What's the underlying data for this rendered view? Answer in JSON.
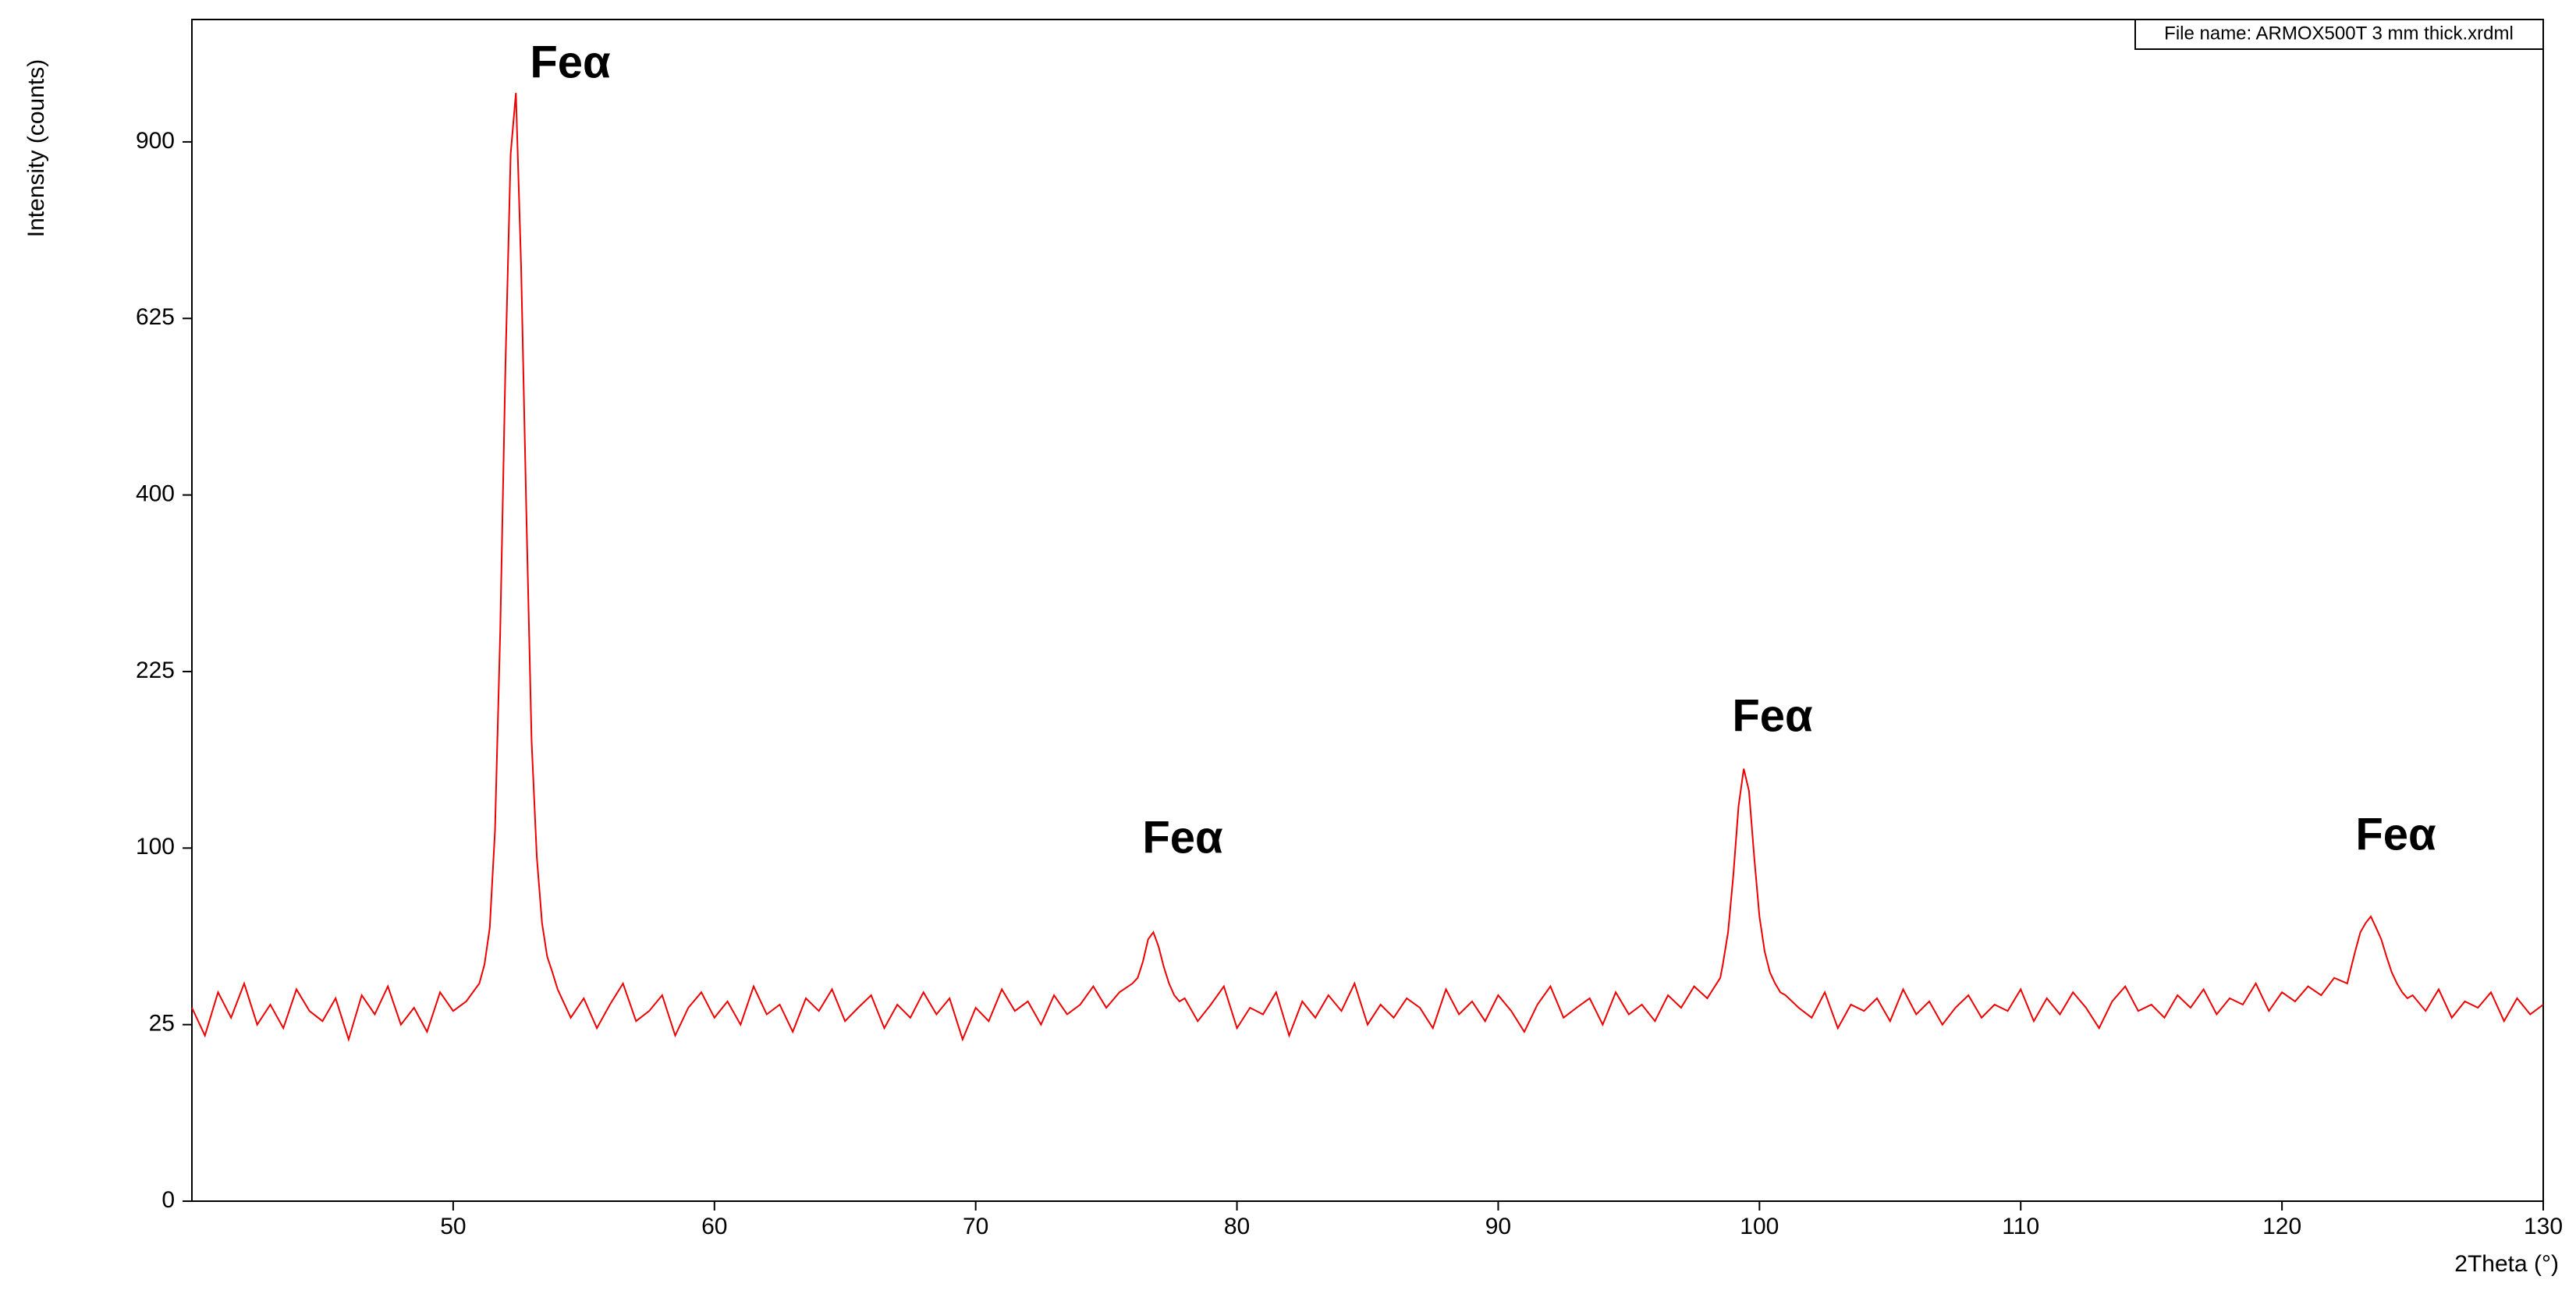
{
  "chart_data": {
    "type": "line",
    "file_note": "File name: ARMOX500T 3 mm thick.xrdml",
    "xlabel": "2Theta (°)",
    "ylabel": "Intensity (counts)",
    "annotations": [
      "Feα",
      "Feα",
      "Feα",
      "Feα"
    ],
    "yscale": "sqrt",
    "xlim": [
      40,
      130
    ],
    "xticks": [
      50,
      60,
      70,
      80,
      90,
      100,
      110,
      120,
      130
    ],
    "ylim": [
      0,
      1120
    ],
    "yticks": [
      0,
      25,
      100,
      225,
      400,
      625,
      900
    ],
    "x": [
      40,
      40.5,
      41,
      41.5,
      42,
      42.5,
      43,
      43.5,
      44,
      44.5,
      45,
      45.5,
      46,
      46.5,
      47,
      47.5,
      48,
      48.5,
      49,
      49.5,
      50,
      50.5,
      51,
      51.2,
      51.4,
      51.6,
      51.8,
      52,
      52.2,
      52.4,
      52.6,
      52.8,
      53,
      53.2,
      53.4,
      53.6,
      53.8,
      54,
      54.5,
      55,
      55.5,
      56,
      56.5,
      57,
      57.5,
      58,
      58.5,
      59,
      59.5,
      60,
      60.5,
      61,
      61.5,
      62,
      62.5,
      63,
      63.5,
      64,
      64.5,
      65,
      65.5,
      66,
      66.5,
      67,
      67.5,
      68,
      68.5,
      69,
      69.5,
      70,
      70.5,
      71,
      71.5,
      72,
      72.5,
      73,
      73.5,
      74,
      74.5,
      75,
      75.5,
      76,
      76.2,
      76.4,
      76.6,
      76.8,
      77,
      77.2,
      77.4,
      77.6,
      77.8,
      78,
      78.5,
      79,
      79.5,
      80,
      80.5,
      81,
      81.5,
      82,
      82.5,
      83,
      83.5,
      84,
      84.5,
      85,
      85.5,
      86,
      86.5,
      87,
      87.5,
      88,
      88.5,
      89,
      89.5,
      90,
      90.5,
      91,
      91.5,
      92,
      92.5,
      93,
      93.5,
      94,
      94.5,
      95,
      95.5,
      96,
      96.5,
      97,
      97.5,
      98,
      98.5,
      98.6,
      98.8,
      99,
      99.2,
      99.4,
      99.6,
      99.8,
      100,
      100.2,
      100.4,
      100.6,
      100.8,
      101,
      101.5,
      102,
      102.5,
      103,
      103.5,
      104,
      104.5,
      105,
      105.5,
      106,
      106.5,
      107,
      107.5,
      108,
      108.5,
      109,
      109.5,
      110,
      110.5,
      111,
      111.5,
      112,
      112.5,
      113,
      113.5,
      114,
      114.5,
      115,
      115.5,
      116,
      116.5,
      117,
      117.5,
      118,
      118.5,
      119,
      119.5,
      120,
      120.5,
      121,
      121.5,
      122,
      122.5,
      122.6,
      122.8,
      123,
      123.2,
      123.4,
      123.6,
      123.8,
      124,
      124.2,
      124.4,
      124.6,
      124.8,
      125,
      125.5,
      126,
      126.5,
      127,
      127.5,
      128,
      128.5,
      129,
      129.5,
      130
    ],
    "series": [
      {
        "color": "#ee0000",
        "values": [
          30,
          22,
          35,
          27,
          38,
          25,
          31,
          24,
          36,
          29,
          26,
          33,
          21,
          34,
          28,
          37,
          25,
          30,
          23,
          35,
          29,
          32,
          38,
          45,
          60,
          110,
          260,
          560,
          880,
          985,
          700,
          380,
          170,
          95,
          62,
          48,
          42,
          36,
          27,
          33,
          24,
          31,
          38,
          26,
          29,
          34,
          22,
          30,
          35,
          27,
          32,
          25,
          37,
          28,
          31,
          23,
          33,
          29,
          36,
          26,
          30,
          34,
          24,
          31,
          27,
          35,
          28,
          33,
          21,
          30,
          26,
          36,
          29,
          32,
          25,
          34,
          28,
          31,
          37,
          30,
          35,
          38,
          40,
          46,
          55,
          58,
          52,
          44,
          38,
          34,
          32,
          33,
          26,
          31,
          37,
          24,
          30,
          28,
          35,
          22,
          32,
          27,
          34,
          29,
          38,
          25,
          31,
          27,
          33,
          30,
          24,
          36,
          28,
          32,
          26,
          34,
          29,
          23,
          31,
          37,
          27,
          30,
          33,
          25,
          35,
          28,
          31,
          26,
          34,
          30,
          37,
          33,
          40,
          45,
          58,
          85,
          125,
          150,
          135,
          95,
          65,
          50,
          42,
          38,
          35,
          34,
          30,
          27,
          35,
          24,
          31,
          29,
          33,
          26,
          36,
          28,
          32,
          25,
          30,
          34,
          27,
          31,
          29,
          36,
          26,
          33,
          28,
          35,
          30,
          24,
          32,
          37,
          29,
          31,
          27,
          34,
          30,
          36,
          28,
          33,
          31,
          38,
          29,
          35,
          32,
          37,
          34,
          40,
          38,
          42,
          50,
          58,
          62,
          65,
          60,
          55,
          48,
          42,
          38,
          35,
          33,
          34,
          29,
          36,
          27,
          32,
          30,
          35,
          26,
          33,
          28,
          31
        ]
      }
    ]
  }
}
